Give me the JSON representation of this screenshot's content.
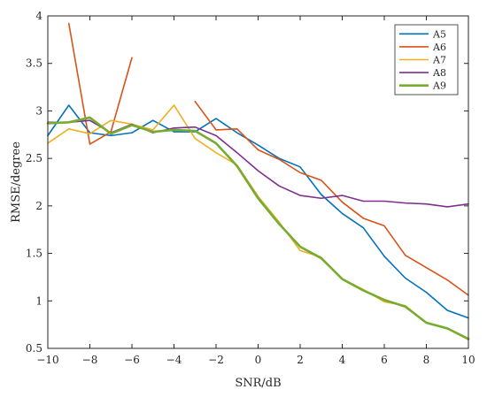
{
  "chart_data": {
    "type": "line",
    "xlabel": "SNR/dB",
    "ylabel": "RMSE/degree",
    "xlim": [
      -10,
      10
    ],
    "ylim": [
      0.5,
      4
    ],
    "xticks": [
      -10,
      -8,
      -6,
      -4,
      -2,
      0,
      2,
      4,
      6,
      8,
      10
    ],
    "yticks": [
      0.5,
      1,
      1.5,
      2,
      2.5,
      3,
      3.5,
      4
    ],
    "grid": false,
    "legend_position": "top-right",
    "series": [
      {
        "name": "A5",
        "color": "#0072BD",
        "segments": [
          {
            "x": [
              -10,
              -9,
              -8,
              -7,
              -6,
              -5,
              -4,
              -3,
              -2,
              -1,
              0,
              1,
              2,
              3,
              4,
              5,
              6,
              7,
              8,
              9,
              10
            ],
            "y": [
              2.74,
              3.06,
              2.77,
              2.74,
              2.77,
              2.9,
              2.78,
              2.78,
              2.92,
              2.77,
              2.64,
              2.5,
              2.41,
              2.12,
              1.92,
              1.77,
              1.47,
              1.24,
              1.09,
              0.9,
              0.82
            ]
          }
        ]
      },
      {
        "name": "A6",
        "color": "#D95319",
        "segments": [
          {
            "x": [
              -9,
              -8,
              -7,
              -6
            ],
            "y": [
              3.92,
              2.65,
              2.78,
              3.56
            ]
          },
          {
            "x": [
              -3,
              -2,
              -1,
              0,
              1,
              2,
              3,
              4,
              5,
              6,
              7,
              8,
              9,
              10
            ],
            "y": [
              3.1,
              2.8,
              2.81,
              2.59,
              2.49,
              2.35,
              2.27,
              2.04,
              1.87,
              1.79,
              1.48,
              1.35,
              1.22,
              1.06
            ]
          }
        ]
      },
      {
        "name": "A7",
        "color": "#EDB120",
        "segments": [
          {
            "x": [
              -10,
              -9,
              -8,
              -7,
              -6,
              -5,
              -4,
              -3,
              -2,
              -1,
              0,
              1,
              2,
              3,
              4,
              5,
              6,
              7,
              8,
              9,
              10
            ],
            "y": [
              2.66,
              2.81,
              2.76,
              2.9,
              2.86,
              2.8,
              3.06,
              2.71,
              2.56,
              2.43,
              2.1,
              1.83,
              1.53,
              1.46,
              1.23,
              1.12,
              0.99,
              0.95,
              0.77,
              0.71,
              0.59
            ]
          }
        ]
      },
      {
        "name": "A8",
        "color": "#7E2F8E",
        "segments": [
          {
            "x": [
              -10,
              -9,
              -8,
              -7,
              -6,
              -5,
              -4,
              -3,
              -2,
              -1,
              0,
              1,
              2,
              3,
              4,
              5,
              6,
              7,
              8,
              9,
              10
            ],
            "y": [
              2.88,
              2.88,
              2.9,
              2.77,
              2.86,
              2.77,
              2.82,
              2.83,
              2.74,
              2.56,
              2.37,
              2.21,
              2.11,
              2.08,
              2.11,
              2.05,
              2.05,
              2.03,
              2.02,
              1.99,
              2.02
            ]
          }
        ]
      },
      {
        "name": "A9",
        "color": "#77AC30",
        "segments": [
          {
            "x": [
              -10,
              -9,
              -8,
              -7,
              -6,
              -5,
              -4,
              -3,
              -2,
              -1,
              0,
              1,
              2,
              3,
              4,
              5,
              6,
              7,
              8,
              9,
              10
            ],
            "y": [
              2.87,
              2.88,
              2.93,
              2.76,
              2.85,
              2.78,
              2.8,
              2.79,
              2.66,
              2.42,
              2.08,
              1.81,
              1.57,
              1.45,
              1.23,
              1.11,
              1.01,
              0.94,
              0.77,
              0.71,
              0.6
            ]
          }
        ]
      }
    ]
  }
}
